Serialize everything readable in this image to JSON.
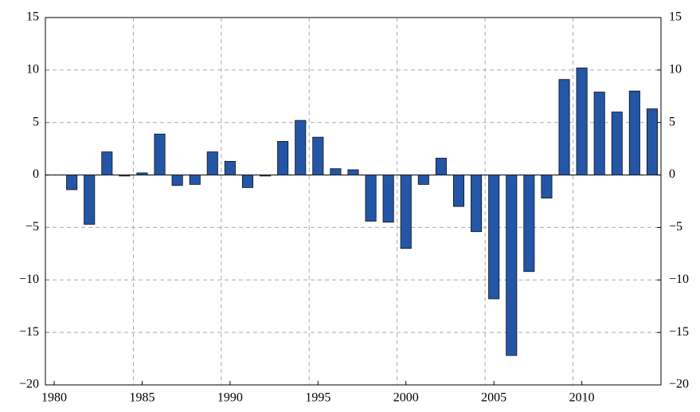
{
  "chart_data": {
    "type": "bar",
    "categories": [
      "1980",
      null,
      null,
      null,
      null,
      "1985",
      null,
      null,
      null,
      null,
      "1990",
      null,
      null,
      null,
      null,
      "1995",
      null,
      null,
      null,
      null,
      "2000",
      null,
      null,
      null,
      null,
      "2005",
      null,
      null,
      null,
      null,
      "2010",
      null,
      null,
      null,
      null
    ],
    "values": [
      0,
      -1.4,
      -4.7,
      2.2,
      -0.1,
      0.2,
      3.9,
      -1.0,
      -0.9,
      2.2,
      1.3,
      -1.2,
      -0.1,
      3.2,
      5.2,
      3.6,
      0.6,
      0.5,
      -4.4,
      -4.5,
      -7.0,
      -0.9,
      1.6,
      -3.0,
      -5.4,
      -11.8,
      -17.2,
      -9.2,
      -2.2,
      9.1,
      10.2,
      7.9,
      6.0,
      8.0,
      6.3
    ],
    "color": "#2356a6",
    "ylim": [
      -20,
      15
    ],
    "yticks": [
      {
        "value": -20,
        "label": "−20"
      },
      {
        "value": -15,
        "label": "−15"
      },
      {
        "value": -10,
        "label": "−10"
      },
      {
        "value": -5,
        "label": "−5"
      },
      0,
      5,
      10,
      15
    ],
    "y2lim": [
      -20,
      15
    ],
    "y2ticks": [
      {
        "value": -20,
        "label": "−20"
      },
      {
        "value": -15,
        "label": "−15"
      },
      {
        "value": -10,
        "label": "−10"
      },
      {
        "value": -5,
        "label": "−5"
      },
      0,
      5,
      10,
      15
    ],
    "grid": true
  }
}
